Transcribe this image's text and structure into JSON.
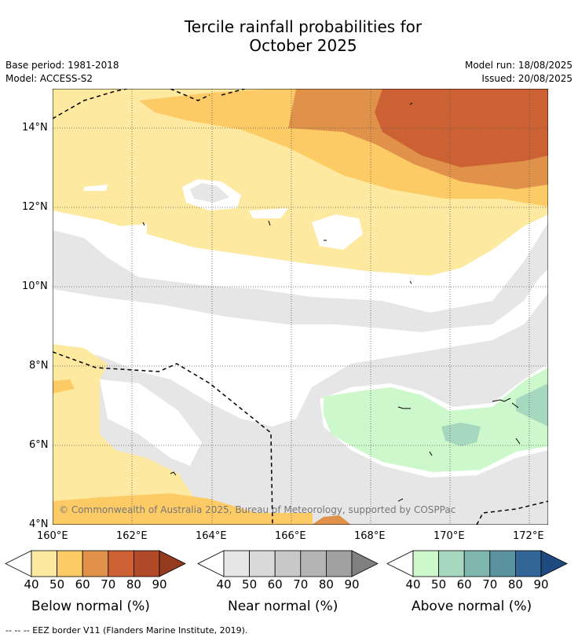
{
  "header": {
    "title_line1": "Tercile rainfall probabilities for",
    "title_line2": "October 2025",
    "base_period": "Base period: 1981-2018",
    "model": "Model: ACCESS-S2",
    "model_run": "Model run: 18/08/2025",
    "issued": "Issued: 20/08/2025"
  },
  "map": {
    "lat_labels": [
      "14°N",
      "12°N",
      "10°N",
      "8°N",
      "6°N",
      "4°N"
    ],
    "lon_labels": [
      "160°E",
      "162°E",
      "164°E",
      "166°E",
      "168°E",
      "170°E",
      "172°E"
    ],
    "copyright": "© Commonwealth of Australia 2025, Bureau of Meteorology, supported by COSPPac"
  },
  "colorbars": [
    {
      "label": "Below normal (%)",
      "ticks": [
        "40",
        "50",
        "60",
        "70",
        "80",
        "90"
      ],
      "colors": [
        "#fee9a0",
        "#fdcb66",
        "#e0924a",
        "#cc6133",
        "#b24a2a",
        "#933a1f"
      ]
    },
    {
      "label": "Near normal (%)",
      "ticks": [
        "40",
        "50",
        "60",
        "70",
        "80",
        "90"
      ],
      "colors": [
        "#e6e6e6",
        "#d9d9d9",
        "#c8c8c8",
        "#b4b4b4",
        "#a0a0a0",
        "#808080"
      ]
    },
    {
      "label": "Above normal (%)",
      "ticks": [
        "40",
        "50",
        "60",
        "70",
        "80",
        "90"
      ],
      "colors": [
        "#ccf8cc",
        "#a6d8c0",
        "#7fb6b0",
        "#5b94a0",
        "#326698",
        "#1f4a80"
      ]
    }
  ],
  "footnote": "--  --  -- EEZ border V11 (Flanders Marine Institute, 2019)."
}
